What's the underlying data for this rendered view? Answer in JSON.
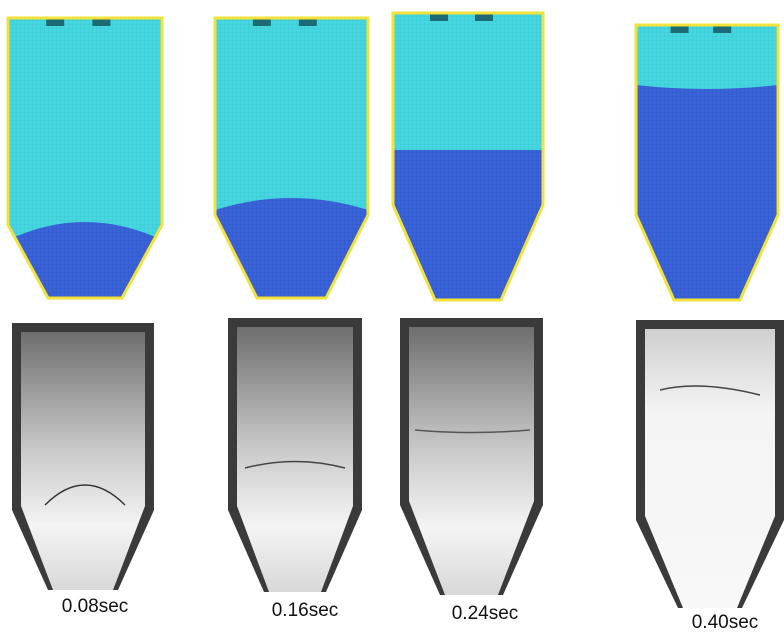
{
  "labels": [
    "0.08sec",
    "0.16sec",
    "0.24sec",
    "0.40sec"
  ]
}
